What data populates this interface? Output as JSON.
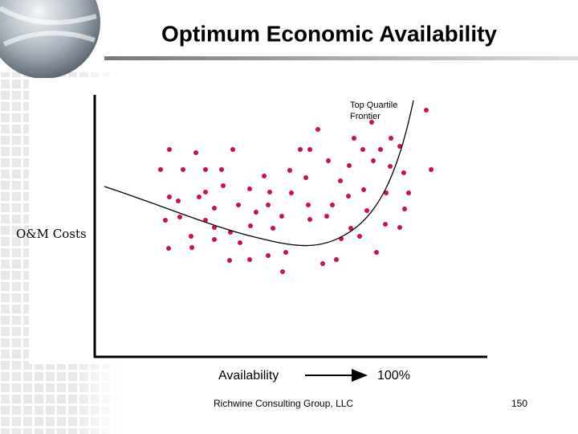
{
  "title": "Optimum Economic Availability",
  "diagram": {
    "frontier_label": [
      "Top Quartile",
      "Frontier"
    ],
    "y_label": "O&M Costs",
    "x_label": "Availability",
    "x_end_label": "100%"
  },
  "footer": {
    "company": "Richwine Consulting Group, LLC",
    "page": "150"
  }
}
